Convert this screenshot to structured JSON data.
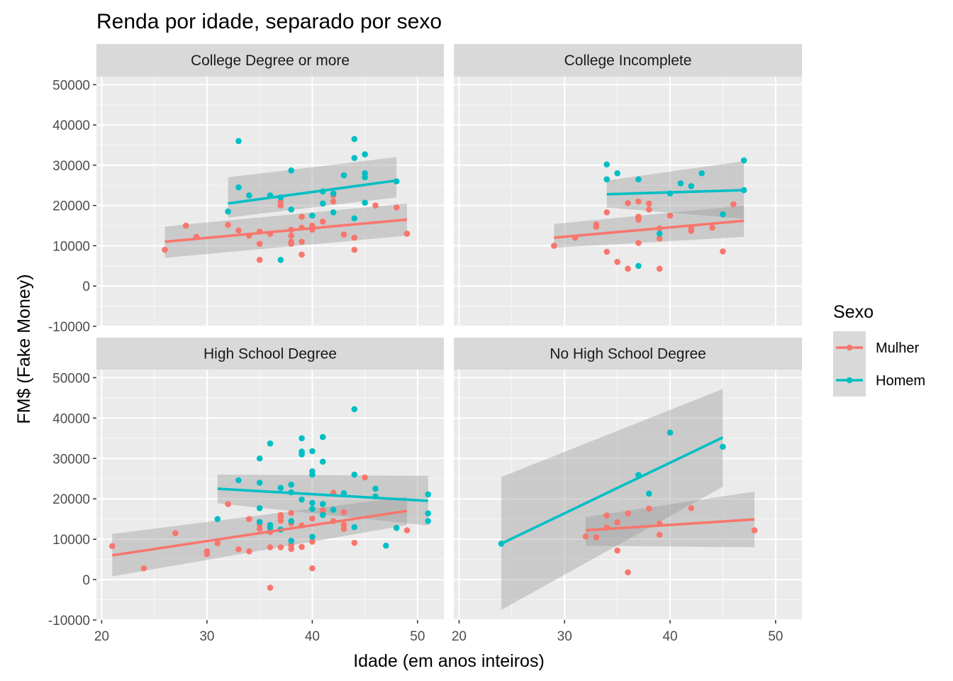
{
  "chart_data": {
    "type": "scatter",
    "title": "Renda por idade, separado por sexo",
    "xlabel": "Idade (em anos inteiros)",
    "ylabel": "FM$ (Fake Money)",
    "xlim": [
      19.5,
      52.5
    ],
    "ylim": [
      -10000,
      52000
    ],
    "x_ticks": [
      20,
      30,
      40,
      50
    ],
    "y_ticks": [
      -10000,
      0,
      10000,
      20000,
      30000,
      40000,
      50000
    ],
    "grid": true,
    "legend": {
      "title": "Sexo",
      "position": "right",
      "entries": [
        "Mulher",
        "Homem"
      ]
    },
    "colors": {
      "Mulher": "#F8766D",
      "Homem": "#00BFC4"
    },
    "panels": [
      {
        "strip": "College Degree or more",
        "series": [
          {
            "name": "Mulher",
            "points": [
              [
                26,
                9000
              ],
              [
                28,
                15000
              ],
              [
                29,
                12200
              ],
              [
                32,
                15200
              ],
              [
                33,
                13800
              ],
              [
                34,
                12500
              ],
              [
                35,
                13500
              ],
              [
                35,
                10500
              ],
              [
                35,
                6500
              ],
              [
                36,
                13000
              ],
              [
                37,
                21000
              ],
              [
                37,
                20000
              ],
              [
                38,
                14000
              ],
              [
                38,
                12500
              ],
              [
                38,
                11000
              ],
              [
                38,
                10500
              ],
              [
                39,
                17200
              ],
              [
                39,
                14500
              ],
              [
                39,
                11000
              ],
              [
                39,
                7800
              ],
              [
                40,
                15000
              ],
              [
                40,
                14000
              ],
              [
                41,
                16000
              ],
              [
                42,
                22500
              ],
              [
                42,
                21000
              ],
              [
                43,
                12800
              ],
              [
                44,
                12000
              ],
              [
                44,
                9000
              ],
              [
                46,
                20000
              ],
              [
                48,
                19500
              ],
              [
                49,
                13000
              ]
            ],
            "fit": {
              "x": [
                26,
                49
              ],
              "y": [
                11000,
                16500
              ],
              "band_lo": [
                7000,
                12500
              ],
              "band_hi": [
                14800,
                20500
              ]
            }
          },
          {
            "name": "Homem",
            "points": [
              [
                32,
                18500
              ],
              [
                33,
                36000
              ],
              [
                33,
                24500
              ],
              [
                34,
                22500
              ],
              [
                36,
                22500
              ],
              [
                37,
                22000
              ],
              [
                37,
                6500
              ],
              [
                38,
                28700
              ],
              [
                38,
                19000
              ],
              [
                40,
                17500
              ],
              [
                41,
                23500
              ],
              [
                41,
                20500
              ],
              [
                42,
                18300
              ],
              [
                42,
                23000
              ],
              [
                43,
                27500
              ],
              [
                44,
                36500
              ],
              [
                44,
                31800
              ],
              [
                44,
                16800
              ],
              [
                45,
                32700
              ],
              [
                45,
                28000
              ],
              [
                45,
                27000
              ],
              [
                45,
                20700
              ],
              [
                48,
                26000
              ]
            ],
            "fit": {
              "x": [
                32,
                48
              ],
              "y": [
                20500,
                26200
              ],
              "band_lo": [
                17000,
                22000
              ],
              "band_hi": [
                27000,
                32000
              ]
            }
          }
        ]
      },
      {
        "strip": "College Incomplete",
        "series": [
          {
            "name": "Mulher",
            "points": [
              [
                29,
                10000
              ],
              [
                31,
                12000
              ],
              [
                33,
                15300
              ],
              [
                33,
                14700
              ],
              [
                34,
                18300
              ],
              [
                34,
                8500
              ],
              [
                35,
                6000
              ],
              [
                36,
                4300
              ],
              [
                36,
                20600
              ],
              [
                37,
                21000
              ],
              [
                37,
                17200
              ],
              [
                37,
                16500
              ],
              [
                37,
                10700
              ],
              [
                38,
                20500
              ],
              [
                38,
                19000
              ],
              [
                39,
                14300
              ],
              [
                39,
                11800
              ],
              [
                39,
                4300
              ],
              [
                40,
                17500
              ],
              [
                42,
                14500
              ],
              [
                42,
                13700
              ],
              [
                44,
                14500
              ],
              [
                45,
                8600
              ],
              [
                46,
                20300
              ]
            ],
            "fit": {
              "x": [
                29,
                47
              ],
              "y": [
                12000,
                16200
              ],
              "band_lo": [
                9500,
                12200
              ],
              "band_hi": [
                15400,
                20000
              ]
            }
          },
          {
            "name": "Homem",
            "points": [
              [
                34,
                30200
              ],
              [
                34,
                26500
              ],
              [
                35,
                28000
              ],
              [
                37,
                26500
              ],
              [
                37,
                5000
              ],
              [
                39,
                13000
              ],
              [
                40,
                23000
              ],
              [
                41,
                25500
              ],
              [
                42,
                24800
              ],
              [
                43,
                28000
              ],
              [
                45,
                17800
              ],
              [
                47,
                31200
              ],
              [
                47,
                23800
              ]
            ],
            "fit": {
              "x": [
                34,
                47
              ],
              "y": [
                22800,
                23800
              ],
              "band_lo": [
                19500,
                16700
              ],
              "band_hi": [
                26200,
                31000
              ]
            }
          }
        ]
      },
      {
        "strip": "High School Degree",
        "series": [
          {
            "name": "Mulher",
            "points": [
              [
                21,
                8300
              ],
              [
                24,
                2800
              ],
              [
                27,
                11500
              ],
              [
                30,
                7000
              ],
              [
                30,
                6300
              ],
              [
                31,
                9000
              ],
              [
                32,
                18700
              ],
              [
                33,
                7500
              ],
              [
                34,
                15000
              ],
              [
                34,
                7000
              ],
              [
                35,
                13700
              ],
              [
                35,
                12600
              ],
              [
                36,
                12000
              ],
              [
                36,
                11800
              ],
              [
                36,
                8000
              ],
              [
                36,
                -2000
              ],
              [
                37,
                16000
              ],
              [
                37,
                15500
              ],
              [
                37,
                14600
              ],
              [
                37,
                8000
              ],
              [
                38,
                16500
              ],
              [
                38,
                13900
              ],
              [
                38,
                7600
              ],
              [
                38,
                8600
              ],
              [
                39,
                13400
              ],
              [
                39,
                8100
              ],
              [
                40,
                9400
              ],
              [
                40,
                2800
              ],
              [
                40,
                15100
              ],
              [
                41,
                16800
              ],
              [
                41,
                17100
              ],
              [
                42,
                21500
              ],
              [
                42,
                14500
              ],
              [
                43,
                16700
              ],
              [
                43,
                13600
              ],
              [
                43,
                12600
              ],
              [
                44,
                9100
              ],
              [
                45,
                25300
              ],
              [
                49,
                12200
              ]
            ],
            "fit": {
              "x": [
                21,
                49
              ],
              "y": [
                6000,
                17000
              ],
              "band_lo": [
                800,
                13500
              ],
              "band_hi": [
                11300,
                20500
              ]
            }
          },
          {
            "name": "Homem",
            "points": [
              [
                31,
                15000
              ],
              [
                33,
                24600
              ],
              [
                35,
                30000
              ],
              [
                35,
                24000
              ],
              [
                35,
                17700
              ],
              [
                35,
                14300
              ],
              [
                36,
                33700
              ],
              [
                36,
                13500
              ],
              [
                36,
                12900
              ],
              [
                37,
                22700
              ],
              [
                37,
                12400
              ],
              [
                38,
                23500
              ],
              [
                38,
                21600
              ],
              [
                38,
                14500
              ],
              [
                38,
                9600
              ],
              [
                39,
                35000
              ],
              [
                39,
                31700
              ],
              [
                39,
                31000
              ],
              [
                39,
                19800
              ],
              [
                40,
                31800
              ],
              [
                40,
                26800
              ],
              [
                40,
                26000
              ],
              [
                40,
                19000
              ],
              [
                40,
                17500
              ],
              [
                40,
                10600
              ],
              [
                41,
                35300
              ],
              [
                41,
                29200
              ],
              [
                41,
                18700
              ],
              [
                41,
                16000
              ],
              [
                42,
                17300
              ],
              [
                43,
                21400
              ],
              [
                44,
                42200
              ],
              [
                44,
                26000
              ],
              [
                44,
                13000
              ],
              [
                46,
                22500
              ],
              [
                46,
                20600
              ],
              [
                47,
                8400
              ],
              [
                48,
                12800
              ],
              [
                51,
                21100
              ],
              [
                51,
                16400
              ],
              [
                51,
                14500
              ]
            ],
            "fit": {
              "x": [
                31,
                51
              ],
              "y": [
                22500,
                19500
              ],
              "band_lo": [
                18900,
                13400
              ],
              "band_hi": [
                26000,
                25700
              ]
            }
          }
        ]
      },
      {
        "strip": "No High School Degree",
        "series": [
          {
            "name": "Mulher",
            "points": [
              [
                32,
                10700
              ],
              [
                33,
                10500
              ],
              [
                34,
                15900
              ],
              [
                34,
                12900
              ],
              [
                35,
                14200
              ],
              [
                35,
                7200
              ],
              [
                36,
                16400
              ],
              [
                36,
                1800
              ],
              [
                38,
                17600
              ],
              [
                39,
                13900
              ],
              [
                39,
                11100
              ],
              [
                42,
                17700
              ],
              [
                48,
                12200
              ]
            ],
            "fit": {
              "x": [
                32,
                48
              ],
              "y": [
                12200,
                14900
              ],
              "band_lo": [
                8400,
                8000
              ],
              "band_hi": [
                15500,
                21800
              ]
            }
          },
          {
            "name": "Homem",
            "points": [
              [
                24,
                8900
              ],
              [
                37,
                25900
              ],
              [
                38,
                21300
              ],
              [
                40,
                36400
              ],
              [
                45,
                32900
              ]
            ],
            "fit": {
              "x": [
                24,
                45
              ],
              "y": [
                8900,
                35200
              ],
              "band_lo": [
                -7500,
                23000
              ],
              "band_hi": [
                25400,
                47200
              ]
            }
          }
        ]
      }
    ]
  }
}
